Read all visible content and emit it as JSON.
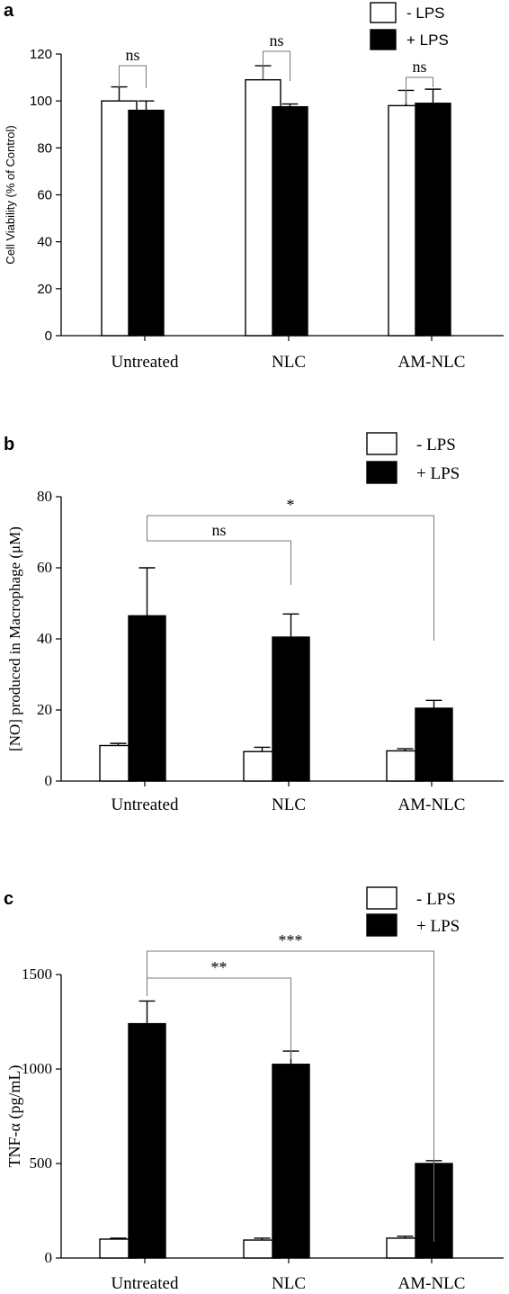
{
  "chart_data": [
    {
      "panel_label": "a",
      "type": "bar",
      "categories": [
        "Untreated",
        "NLC",
        "AM-NLC"
      ],
      "series": [
        {
          "name": "- LPS",
          "fill": "#ffffff",
          "values": [
            100,
            109,
            98
          ],
          "errors": [
            6,
            6,
            6.5
          ]
        },
        {
          "name": "+ LPS",
          "fill": "#000000",
          "values": [
            96,
            97.5,
            99
          ],
          "errors": [
            4,
            1.2,
            6
          ]
        }
      ],
      "title": "",
      "xlabel": "",
      "ylabel": "Cell Viability (% of Control)",
      "ylim": [
        0,
        120
      ],
      "yticks": [
        0,
        20,
        40,
        60,
        80,
        100,
        120
      ],
      "grid": false,
      "legend": "top-right",
      "annotations": [
        {
          "text": "ns",
          "from": "Untreated:- LPS",
          "to": "Untreated:+ LPS"
        },
        {
          "text": "ns",
          "from": "NLC:- LPS",
          "to": "NLC:+ LPS"
        },
        {
          "text": "ns",
          "from": "AM-NLC:- LPS",
          "to": "AM-NLC:+ LPS"
        }
      ]
    },
    {
      "panel_label": "b",
      "type": "bar",
      "categories": [
        "Untreated",
        "NLC",
        "AM-NLC"
      ],
      "series": [
        {
          "name": "- LPS",
          "fill": "#ffffff",
          "values": [
            10,
            8.3,
            8.5
          ],
          "errors": [
            0.6,
            1.2,
            0.6
          ]
        },
        {
          "name": "+ LPS",
          "fill": "#000000",
          "values": [
            46.5,
            40.5,
            20.5
          ],
          "errors": [
            13.5,
            6.5,
            2.2
          ]
        }
      ],
      "title": "",
      "xlabel": "",
      "ylabel": "[NO] produced in Macrophage (μM)",
      "ylim": [
        0,
        80
      ],
      "yticks": [
        0,
        20,
        40,
        60,
        80
      ],
      "grid": false,
      "legend": "top-right",
      "annotations": [
        {
          "text": "*",
          "from": "Untreated:+ LPS",
          "to": "AM-NLC:+ LPS"
        },
        {
          "text": "ns",
          "from": "Untreated:+ LPS",
          "to": "NLC:+ LPS"
        }
      ]
    },
    {
      "panel_label": "c",
      "type": "bar",
      "categories": [
        "Untreated",
        "NLC",
        "AM-NLC"
      ],
      "series": [
        {
          "name": "- LPS",
          "fill": "#ffffff",
          "values": [
            100,
            95,
            105
          ],
          "errors": [
            5,
            10,
            10
          ]
        },
        {
          "name": "+ LPS",
          "fill": "#000000",
          "values": [
            1240,
            1025,
            500
          ],
          "errors": [
            120,
            70,
            15
          ]
        }
      ],
      "title": "",
      "xlabel": "",
      "ylabel": "TNF-α (pg/mL)",
      "ylim": [
        0,
        1500
      ],
      "yticks": [
        0,
        500,
        1000,
        1500
      ],
      "grid": false,
      "legend": "top-right",
      "annotations": [
        {
          "text": "***",
          "from": "Untreated:+ LPS",
          "to": "AM-NLC:+ LPS"
        },
        {
          "text": "**",
          "from": "Untreated:+ LPS",
          "to": "NLC:+ LPS"
        }
      ]
    }
  ]
}
